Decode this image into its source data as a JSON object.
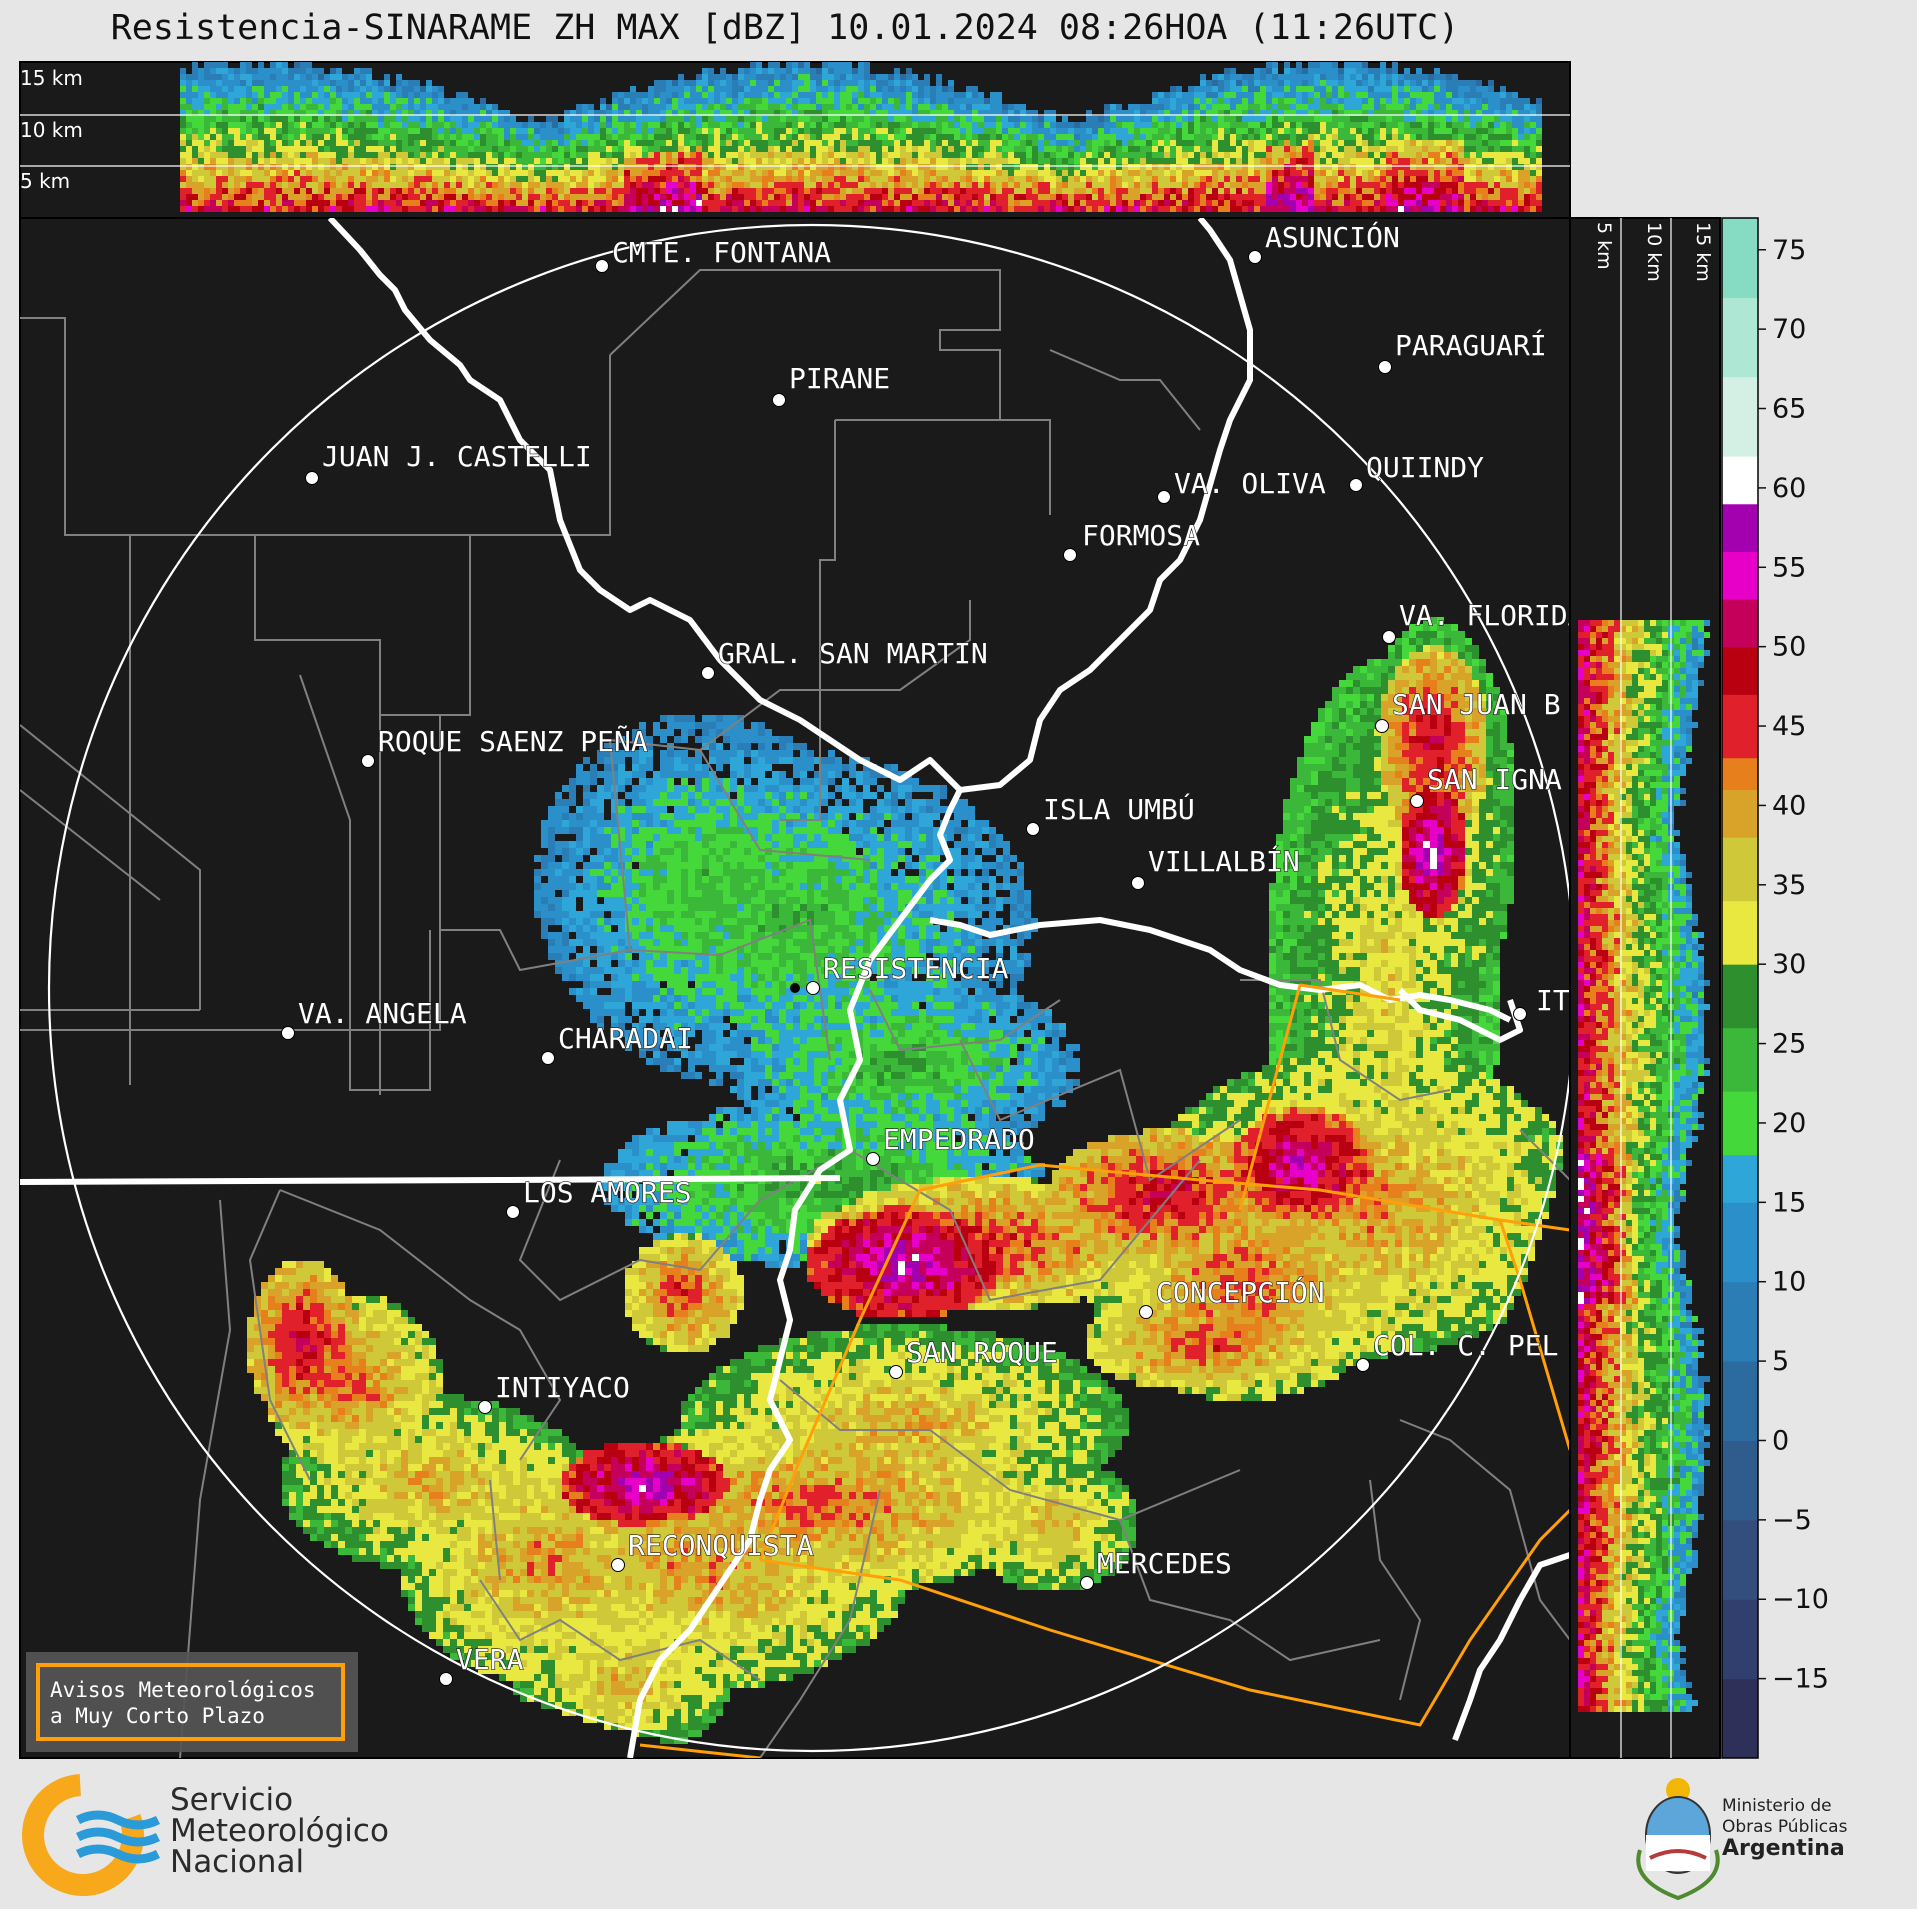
{
  "title": "Resistencia-SINARAME ZH MAX [dBZ] 10.01.2024 08:26HOA (11:26UTC)",
  "top_panel": {
    "height_labels": [
      "15 km",
      "10 km",
      "5 km"
    ]
  },
  "side_panel": {
    "height_labels": [
      "5 km",
      "10 km",
      "15 km"
    ]
  },
  "colorbar": {
    "ticks": [
      "75",
      "70",
      "65",
      "60",
      "55",
      "50",
      "45",
      "40",
      "35",
      "30",
      "25",
      "20",
      "15",
      "10",
      "5",
      "0",
      "−5",
      "−10",
      "−15"
    ],
    "range": [
      -20,
      77
    ],
    "stops": [
      {
        "from": -20,
        "color": "#2e3059"
      },
      {
        "from": -15,
        "color": "#313f6e"
      },
      {
        "from": -10,
        "color": "#334d7d"
      },
      {
        "from": -5,
        "color": "#2f5b8d"
      },
      {
        "from": 0,
        "color": "#2c6ba0"
      },
      {
        "from": 5,
        "color": "#2a7db5"
      },
      {
        "from": 10,
        "color": "#2b90c9"
      },
      {
        "from": 15,
        "color": "#2fa6d8"
      },
      {
        "from": 18,
        "color": "#44d83a"
      },
      {
        "from": 22,
        "color": "#3bb83a"
      },
      {
        "from": 26,
        "color": "#2e8f2f"
      },
      {
        "from": 30,
        "color": "#e8e840"
      },
      {
        "from": 34,
        "color": "#cfc93a"
      },
      {
        "from": 38,
        "color": "#d9a32a"
      },
      {
        "from": 41,
        "color": "#e87f1d"
      },
      {
        "from": 43,
        "color": "#e0202a"
      },
      {
        "from": 47,
        "color": "#b80010"
      },
      {
        "from": 50,
        "color": "#c4005a"
      },
      {
        "from": 53,
        "color": "#e600c8"
      },
      {
        "from": 56,
        "color": "#a300b0"
      },
      {
        "from": 59,
        "color": "#ffffff"
      },
      {
        "from": 62,
        "color": "#d4f0e4"
      },
      {
        "from": 67,
        "color": "#aee8d4"
      },
      {
        "from": 72,
        "color": "#86dcc2"
      }
    ]
  },
  "cities": [
    {
      "name": "CMTE. FONTANA"
    },
    {
      "name": "ASUNCIÓN"
    },
    {
      "name": "PARAGUARÍ"
    },
    {
      "name": "PIRANE"
    },
    {
      "name": "JUAN J. CASTELLI"
    },
    {
      "name": "VA. OLIVA"
    },
    {
      "name": "QUIINDY"
    },
    {
      "name": "FORMOSA"
    },
    {
      "name": "VA. FLORIDA"
    },
    {
      "name": "GRAL. SAN MARTIN"
    },
    {
      "name": "SAN JUAN B"
    },
    {
      "name": "ROQUE SAENZ PEÑA"
    },
    {
      "name": "SAN IGNA"
    },
    {
      "name": "ISLA UMBÚ"
    },
    {
      "name": "VILLALBÍN"
    },
    {
      "name": "RESISTENCIA"
    },
    {
      "name": "VA. ANGELA"
    },
    {
      "name": "CHARADAI"
    },
    {
      "name": "IT"
    },
    {
      "name": "EMPEDRADO"
    },
    {
      "name": "LOS AMORES"
    },
    {
      "name": "CONCEPCIÓN"
    },
    {
      "name": "SAN ROQUE"
    },
    {
      "name": "COL. C. PEL"
    },
    {
      "name": "INTIYACO"
    },
    {
      "name": "RECONQUISTA"
    },
    {
      "name": "MERCEDES"
    },
    {
      "name": "VERA"
    }
  ],
  "warning_box": {
    "line1": "Avisos Meteorológicos",
    "line2": "a Muy Corto Plazo"
  },
  "footer": {
    "smn_lines": [
      "Servicio",
      "Meteorológico",
      "Nacional"
    ],
    "mop_lines": [
      "Ministerio de",
      "Obras Públicas",
      "Argentina"
    ]
  },
  "colors": {
    "background": "#e6e6e6",
    "map_bg": "#1a1a1a",
    "range_ring": "#ffffff",
    "warning": "#ff9f0a",
    "borders": "#808080"
  }
}
